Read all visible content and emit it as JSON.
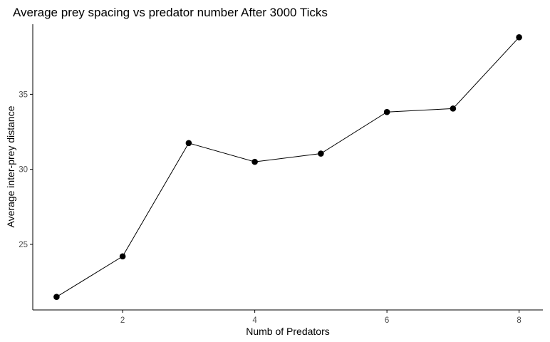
{
  "chart_data": {
    "type": "line",
    "title": "Average prey spacing vs predator number After 3000 Ticks",
    "xlabel": "Numb of Predators",
    "ylabel": "Average inter-prey distance",
    "x": [
      1,
      2,
      3,
      4,
      5,
      6,
      7,
      8
    ],
    "series": [
      {
        "values": [
          21.5,
          24.2,
          31.75,
          30.5,
          31.05,
          33.82,
          34.05,
          38.8
        ]
      }
    ],
    "xticks": [
      2,
      4,
      6,
      8
    ],
    "xtick_labels": [
      "2",
      "4",
      "6",
      "8"
    ],
    "yticks": [
      25,
      30,
      35
    ],
    "ytick_labels": [
      "25",
      "30",
      "35"
    ],
    "xlim": [
      0.64,
      8.36
    ],
    "ylim": [
      20.63,
      39.67
    ],
    "grid": false,
    "legend": "none",
    "markers": true,
    "colors": {
      "line": "#000000",
      "point": "#000000",
      "axis": "#000000",
      "tick_text": "#4d4d4d"
    }
  }
}
